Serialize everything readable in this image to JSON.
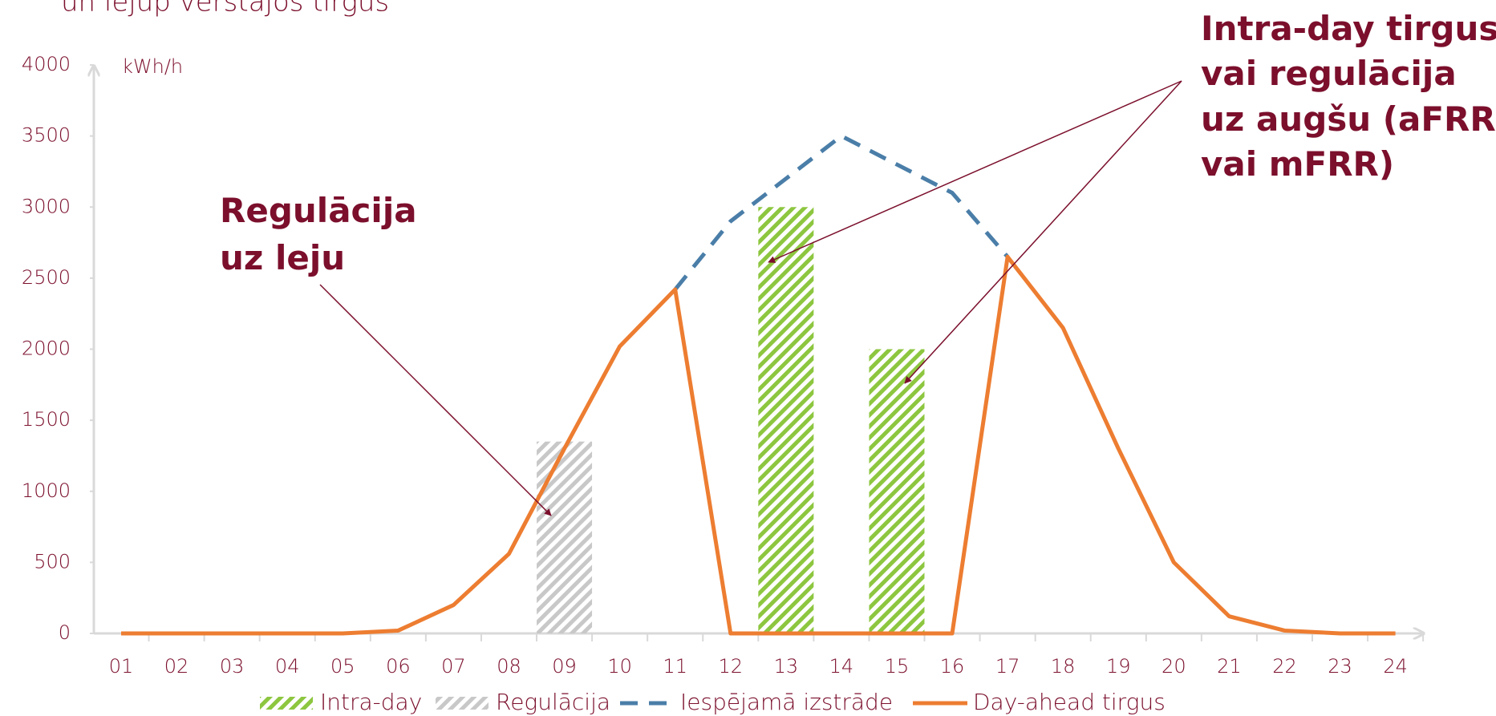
{
  "chart_data": {
    "type": "combo",
    "title": "un lejup vērstajos tirgus",
    "y_label": "kWh/h",
    "categories": [
      "01",
      "02",
      "03",
      "04",
      "05",
      "06",
      "07",
      "08",
      "09",
      "10",
      "11",
      "12",
      "13",
      "14",
      "15",
      "16",
      "17",
      "18",
      "19",
      "20",
      "21",
      "22",
      "23",
      "24"
    ],
    "ylim": [
      0,
      4000
    ],
    "yticks": [
      0,
      500,
      1000,
      1500,
      2000,
      2500,
      3000,
      3500,
      4000
    ],
    "annotations": [
      "Regulācija",
      "uz leju",
      "Intra-day tirgus",
      "vai regulācija",
      "uz augšu (aFRR",
      "vai mFRR)"
    ],
    "series": [
      {
        "name": "Intra-day",
        "style": "hatched-bar",
        "color": "#8dc63f",
        "values": [
          null,
          null,
          null,
          null,
          null,
          null,
          null,
          null,
          null,
          null,
          null,
          null,
          3000,
          null,
          2000,
          null,
          null,
          null,
          null,
          null,
          null,
          null,
          null,
          null
        ]
      },
      {
        "name": "Regulācija",
        "style": "hatched-bar",
        "color": "#c8c8c8",
        "values": [
          null,
          null,
          null,
          null,
          null,
          null,
          null,
          null,
          1350,
          null,
          null,
          null,
          null,
          null,
          null,
          null,
          null,
          null,
          null,
          null,
          null,
          null,
          null,
          null
        ]
      },
      {
        "name": "Iespējamā izstrāde",
        "style": "dashed-line",
        "color": "#4a7ea8",
        "values": [
          null,
          null,
          null,
          null,
          null,
          null,
          null,
          null,
          null,
          null,
          2420,
          2900,
          3200,
          3500,
          3300,
          3100,
          2650,
          null,
          null,
          null,
          null,
          null,
          null,
          null
        ]
      },
      {
        "name": "Day-ahead tirgus",
        "style": "line",
        "color": "#ed7d31",
        "values": [
          0,
          0,
          0,
          0,
          0,
          20,
          200,
          560,
          1300,
          2020,
          2420,
          0,
          0,
          0,
          0,
          0,
          2650,
          2150,
          1300,
          500,
          120,
          20,
          0,
          0
        ]
      }
    ]
  }
}
